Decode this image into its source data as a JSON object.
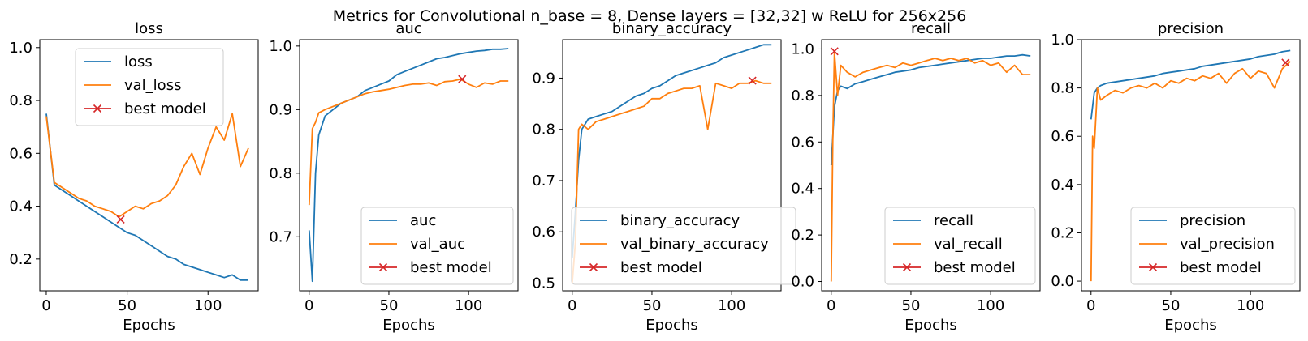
{
  "figure": {
    "suptitle": "Metrics for Convolutional n_base = 8, Dense layers = [32,32] w ReLU for 256x256",
    "colors": {
      "train": "#1f77b4",
      "val": "#ff7f0e",
      "best": "#d62728"
    }
  },
  "chart_data": [
    {
      "type": "line",
      "title": "loss",
      "xlabel": "Epochs",
      "ylabel": "",
      "xlim": [
        -4,
        131
      ],
      "ylim": [
        0.08,
        1.03
      ],
      "xticks": [
        0,
        50,
        100
      ],
      "yticks": [
        0.2,
        0.4,
        0.6,
        0.8,
        1.0
      ],
      "ytick_labels": [
        "0.2",
        "0.4",
        "0.6",
        "0.8",
        "1.0"
      ],
      "legend_loc": "upper-center",
      "series": [
        {
          "name": "loss",
          "x": [
            0,
            5,
            10,
            15,
            20,
            25,
            30,
            35,
            40,
            45,
            50,
            55,
            60,
            65,
            70,
            75,
            80,
            85,
            90,
            95,
            100,
            105,
            110,
            115,
            120,
            125
          ],
          "y": [
            0.75,
            0.48,
            0.46,
            0.44,
            0.42,
            0.4,
            0.38,
            0.36,
            0.34,
            0.32,
            0.3,
            0.29,
            0.27,
            0.25,
            0.23,
            0.21,
            0.2,
            0.18,
            0.17,
            0.16,
            0.15,
            0.14,
            0.13,
            0.14,
            0.12,
            0.12
          ]
        },
        {
          "name": "val_loss",
          "x": [
            0,
            5,
            10,
            15,
            20,
            25,
            30,
            35,
            40,
            45,
            50,
            55,
            60,
            65,
            70,
            75,
            80,
            85,
            90,
            95,
            100,
            105,
            110,
            115,
            120,
            125
          ],
          "y": [
            0.74,
            0.49,
            0.47,
            0.45,
            0.43,
            0.42,
            0.4,
            0.39,
            0.38,
            0.36,
            0.38,
            0.4,
            0.39,
            0.41,
            0.42,
            0.44,
            0.48,
            0.55,
            0.6,
            0.52,
            0.62,
            0.7,
            0.65,
            0.75,
            0.55,
            0.62
          ]
        }
      ],
      "best": {
        "name": "best model",
        "x": 46,
        "y": 0.35
      }
    },
    {
      "type": "line",
      "title": "auc",
      "xlabel": "Epochs",
      "ylabel": "",
      "xlim": [
        -6,
        131
      ],
      "ylim": [
        0.615,
        1.01
      ],
      "xticks": [
        0,
        50,
        100
      ],
      "yticks": [
        0.7,
        0.8,
        0.9,
        1.0
      ],
      "ytick_labels": [
        "0.7",
        "0.8",
        "0.9",
        "1.0"
      ],
      "legend_loc": "lower-right",
      "series": [
        {
          "name": "auc",
          "x": [
            0,
            2,
            4,
            6,
            10,
            15,
            20,
            25,
            30,
            35,
            40,
            45,
            50,
            55,
            60,
            65,
            70,
            75,
            80,
            85,
            90,
            95,
            100,
            105,
            110,
            115,
            120,
            125
          ],
          "y": [
            0.71,
            0.63,
            0.8,
            0.86,
            0.89,
            0.9,
            0.91,
            0.915,
            0.92,
            0.93,
            0.935,
            0.94,
            0.945,
            0.955,
            0.96,
            0.965,
            0.97,
            0.975,
            0.98,
            0.982,
            0.985,
            0.988,
            0.99,
            0.992,
            0.993,
            0.995,
            0.995,
            0.996
          ]
        },
        {
          "name": "val_auc",
          "x": [
            0,
            2,
            4,
            6,
            10,
            15,
            20,
            25,
            30,
            35,
            40,
            45,
            50,
            55,
            60,
            65,
            70,
            75,
            80,
            85,
            90,
            95,
            100,
            105,
            110,
            115,
            120,
            125
          ],
          "y": [
            0.75,
            0.87,
            0.88,
            0.895,
            0.9,
            0.905,
            0.91,
            0.915,
            0.92,
            0.925,
            0.928,
            0.93,
            0.932,
            0.935,
            0.938,
            0.94,
            0.94,
            0.942,
            0.938,
            0.944,
            0.945,
            0.948,
            0.94,
            0.935,
            0.942,
            0.94,
            0.945,
            0.945
          ]
        }
      ],
      "best": {
        "name": "best model",
        "x": 96,
        "y": 0.948
      }
    },
    {
      "type": "line",
      "title": "binary_accuracy",
      "xlabel": "Epochs",
      "ylabel": "",
      "xlim": [
        -6,
        131
      ],
      "ylim": [
        0.485,
        0.975
      ],
      "xticks": [
        0,
        50,
        100
      ],
      "yticks": [
        0.5,
        0.6,
        0.7,
        0.8,
        0.9
      ],
      "ytick_labels": [
        "0.5",
        "0.6",
        "0.7",
        "0.8",
        "0.9"
      ],
      "legend_loc": "lower-right",
      "series": [
        {
          "name": "binary_accuracy",
          "x": [
            0,
            2,
            4,
            6,
            10,
            15,
            20,
            25,
            30,
            35,
            40,
            45,
            50,
            55,
            60,
            65,
            70,
            75,
            80,
            85,
            90,
            95,
            100,
            105,
            110,
            115,
            120,
            125
          ],
          "y": [
            0.55,
            0.64,
            0.74,
            0.8,
            0.82,
            0.825,
            0.83,
            0.835,
            0.845,
            0.855,
            0.865,
            0.87,
            0.88,
            0.885,
            0.895,
            0.905,
            0.91,
            0.915,
            0.92,
            0.925,
            0.93,
            0.94,
            0.945,
            0.95,
            0.955,
            0.96,
            0.965,
            0.965
          ]
        },
        {
          "name": "val_binary_accuracy",
          "x": [
            0,
            2,
            4,
            6,
            10,
            15,
            20,
            25,
            30,
            35,
            40,
            45,
            50,
            55,
            60,
            65,
            70,
            75,
            80,
            85,
            90,
            95,
            100,
            105,
            110,
            115,
            120,
            125
          ],
          "y": [
            0.5,
            0.58,
            0.8,
            0.81,
            0.8,
            0.815,
            0.82,
            0.825,
            0.83,
            0.835,
            0.84,
            0.845,
            0.86,
            0.86,
            0.87,
            0.875,
            0.88,
            0.88,
            0.885,
            0.8,
            0.89,
            0.885,
            0.88,
            0.89,
            0.89,
            0.895,
            0.89,
            0.89
          ]
        }
      ],
      "best": {
        "name": "best model",
        "x": 113,
        "y": 0.895
      }
    },
    {
      "type": "line",
      "title": "recall",
      "xlabel": "Epochs",
      "ylabel": "",
      "xlim": [
        -6,
        131
      ],
      "ylim": [
        -0.04,
        1.04
      ],
      "xticks": [
        0,
        50,
        100
      ],
      "yticks": [
        0.0,
        0.2,
        0.4,
        0.6,
        0.8,
        1.0
      ],
      "ytick_labels": [
        "0.0",
        "0.2",
        "0.4",
        "0.6",
        "0.8",
        "1.0"
      ],
      "legend_loc": "lower-right",
      "series": [
        {
          "name": "recall",
          "x": [
            0,
            2,
            4,
            6,
            10,
            15,
            20,
            25,
            30,
            35,
            40,
            45,
            50,
            55,
            60,
            65,
            70,
            75,
            80,
            85,
            90,
            95,
            100,
            105,
            110,
            115,
            120,
            125
          ],
          "y": [
            0.5,
            0.75,
            0.82,
            0.84,
            0.83,
            0.85,
            0.86,
            0.87,
            0.88,
            0.89,
            0.9,
            0.905,
            0.91,
            0.92,
            0.925,
            0.93,
            0.935,
            0.94,
            0.945,
            0.95,
            0.955,
            0.96,
            0.96,
            0.965,
            0.97,
            0.97,
            0.975,
            0.97
          ]
        },
        {
          "name": "val_recall",
          "x": [
            0,
            1,
            2,
            4,
            6,
            10,
            15,
            20,
            25,
            30,
            35,
            40,
            45,
            50,
            55,
            60,
            65,
            70,
            75,
            80,
            85,
            90,
            95,
            100,
            105,
            110,
            115,
            120,
            125
          ],
          "y": [
            0.0,
            0.6,
            0.99,
            0.8,
            0.93,
            0.9,
            0.88,
            0.9,
            0.91,
            0.92,
            0.93,
            0.92,
            0.94,
            0.93,
            0.94,
            0.95,
            0.96,
            0.95,
            0.96,
            0.95,
            0.96,
            0.94,
            0.95,
            0.93,
            0.94,
            0.9,
            0.93,
            0.89,
            0.89
          ]
        }
      ],
      "best": {
        "name": "best model",
        "x": 2,
        "y": 0.99
      }
    },
    {
      "type": "line",
      "title": "precision",
      "xlabel": "Epochs",
      "ylabel": "",
      "xlim": [
        -6,
        131
      ],
      "ylim": [
        -0.04,
        1.0
      ],
      "xticks": [
        0,
        50,
        100
      ],
      "yticks": [
        0.0,
        0.2,
        0.4,
        0.6,
        0.8,
        1.0
      ],
      "ytick_labels": [
        "0.0",
        "0.2",
        "0.4",
        "0.6",
        "0.8",
        "1.0"
      ],
      "legend_loc": "lower-right",
      "series": [
        {
          "name": "precision",
          "x": [
            0,
            2,
            4,
            6,
            10,
            15,
            20,
            25,
            30,
            35,
            40,
            45,
            50,
            55,
            60,
            65,
            70,
            75,
            80,
            85,
            90,
            95,
            100,
            105,
            110,
            115,
            120,
            125
          ],
          "y": [
            0.67,
            0.78,
            0.8,
            0.81,
            0.82,
            0.825,
            0.83,
            0.835,
            0.84,
            0.845,
            0.85,
            0.86,
            0.865,
            0.87,
            0.875,
            0.88,
            0.89,
            0.895,
            0.9,
            0.905,
            0.91,
            0.915,
            0.92,
            0.93,
            0.935,
            0.94,
            0.95,
            0.955
          ]
        },
        {
          "name": "val_precision",
          "x": [
            0,
            1,
            2,
            4,
            6,
            10,
            15,
            20,
            25,
            30,
            35,
            40,
            45,
            50,
            55,
            60,
            65,
            70,
            75,
            80,
            85,
            90,
            95,
            100,
            105,
            110,
            115,
            120,
            125
          ],
          "y": [
            0.0,
            0.6,
            0.55,
            0.8,
            0.75,
            0.77,
            0.79,
            0.78,
            0.8,
            0.81,
            0.8,
            0.82,
            0.8,
            0.83,
            0.82,
            0.84,
            0.83,
            0.85,
            0.84,
            0.86,
            0.82,
            0.86,
            0.88,
            0.84,
            0.87,
            0.86,
            0.8,
            0.88,
            0.91
          ]
        }
      ],
      "best": {
        "name": "best model",
        "x": 122,
        "y": 0.905
      }
    }
  ]
}
